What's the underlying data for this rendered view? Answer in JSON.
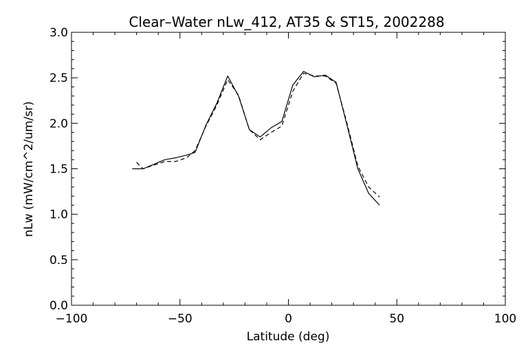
{
  "chart_data": {
    "type": "line",
    "title": "Clear–Water nLw_412, AT35 & ST15, 2002288",
    "xlabel": "Latitude (deg)",
    "ylabel": "nLw (mW/cm^2/um/sr)",
    "xlim": [
      -100,
      100
    ],
    "ylim": [
      0.0,
      3.0
    ],
    "x_ticks": [
      -100,
      -50,
      0,
      50,
      100
    ],
    "x_tick_labels": [
      "−100",
      "−50",
      "0",
      "50",
      "100"
    ],
    "y_ticks": [
      0.0,
      0.5,
      1.0,
      1.5,
      2.0,
      2.5,
      3.0
    ],
    "y_tick_labels": [
      "0.0",
      "0.5",
      "1.0",
      "1.5",
      "2.0",
      "2.5",
      "3.0"
    ],
    "grid": false,
    "legend": "none",
    "series": [
      {
        "style": "solid",
        "x": [
          -72,
          -67,
          -62,
          -57,
          -52,
          -47,
          -43,
          -38,
          -33,
          -28,
          -23,
          -18,
          -13,
          -8,
          -3,
          2,
          7,
          12,
          17,
          22,
          27,
          32,
          37,
          42
        ],
        "y": [
          1.5,
          1.5,
          1.55,
          1.6,
          1.62,
          1.65,
          1.68,
          1.98,
          2.22,
          2.52,
          2.3,
          1.93,
          1.85,
          1.95,
          2.02,
          2.42,
          2.57,
          2.51,
          2.53,
          2.45,
          1.98,
          1.5,
          1.23,
          1.1
        ]
      },
      {
        "style": "dashed",
        "x": [
          -70,
          -67,
          -62,
          -57,
          -52,
          -47,
          -43,
          -38,
          -33,
          -28,
          -23,
          -18,
          -13,
          -8,
          -3,
          2,
          7,
          12,
          17,
          22,
          27,
          32,
          37,
          42
        ],
        "y": [
          1.57,
          1.5,
          1.54,
          1.58,
          1.58,
          1.62,
          1.7,
          1.97,
          2.2,
          2.48,
          2.31,
          1.93,
          1.82,
          1.9,
          1.97,
          2.35,
          2.55,
          2.52,
          2.52,
          2.44,
          2.0,
          1.53,
          1.3,
          1.19
        ]
      }
    ]
  }
}
